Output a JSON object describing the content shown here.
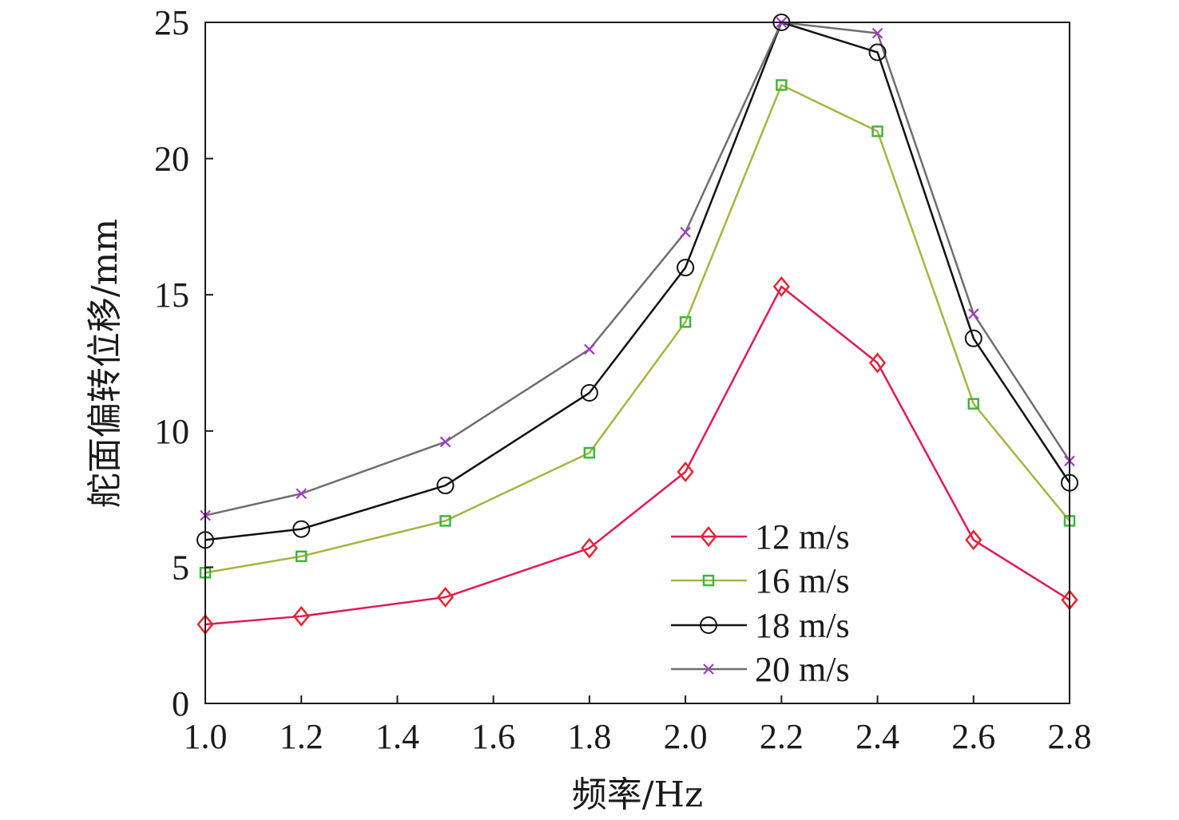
{
  "chart_data": {
    "type": "line",
    "xlabel": "频率/Hz",
    "ylabel": "舵面偏转位移/mm",
    "xlim": [
      1.0,
      2.8
    ],
    "ylim": [
      0,
      25
    ],
    "x_ticks": [
      "1.0",
      "1.2",
      "1.4",
      "1.6",
      "1.8",
      "2.0",
      "2.2",
      "2.4",
      "2.6",
      "2.8"
    ],
    "y_ticks": [
      "0",
      "5",
      "10",
      "15",
      "20",
      "25"
    ],
    "grid": false,
    "legend_position": "bottom-right",
    "x": [
      1.0,
      1.2,
      1.5,
      1.8,
      2.0,
      2.2,
      2.4,
      2.6,
      2.8
    ],
    "series": [
      {
        "name": "12 m/s",
        "marker": "diamond",
        "line_color": "#e0195a",
        "marker_color": "#e8262a",
        "values": [
          2.9,
          3.2,
          3.9,
          5.7,
          8.5,
          15.3,
          12.5,
          6.0,
          3.8
        ]
      },
      {
        "name": "16 m/s",
        "marker": "square",
        "line_color": "#a8b340",
        "marker_color": "#3cb83c",
        "values": [
          4.8,
          5.4,
          6.7,
          9.2,
          14.0,
          22.7,
          21.0,
          11.0,
          6.7
        ]
      },
      {
        "name": "18 m/s",
        "marker": "circle",
        "line_color": "#111111",
        "marker_color": "#111111",
        "values": [
          6.0,
          6.4,
          8.0,
          11.4,
          16.0,
          25.0,
          23.9,
          13.4,
          8.1
        ]
      },
      {
        "name": "20 m/s",
        "marker": "x",
        "line_color": "#6e6e6e",
        "marker_color": "#a03cc0",
        "values": [
          6.9,
          7.7,
          9.6,
          13.0,
          17.3,
          25.0,
          24.6,
          14.3,
          8.9
        ]
      }
    ]
  }
}
